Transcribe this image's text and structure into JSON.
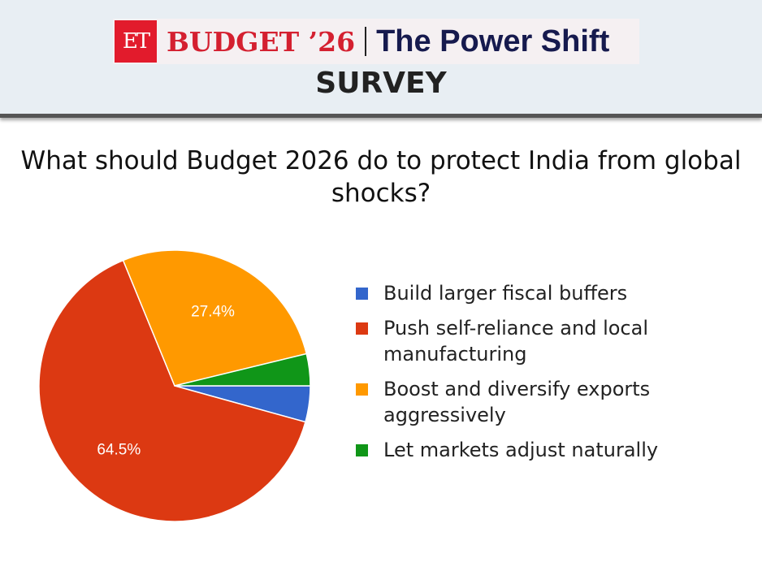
{
  "header": {
    "logo": "ET",
    "brand": "BUDGET ’26",
    "tagline": "The Power Shift",
    "subtitle": "SURVEY"
  },
  "chart_data": {
    "type": "pie",
    "title": "What should Budget 2026 do to protect India from global shocks?",
    "categories": [
      "Build larger fiscal buffers",
      "Push self-reliance and local manufacturing",
      "Boost and diversify exports aggressively",
      "Let markets adjust naturally"
    ],
    "values": [
      4.3,
      64.5,
      27.4,
      3.8
    ],
    "data_labels": [
      "",
      "64.5%",
      "27.4%",
      ""
    ],
    "colors": [
      "#3366cc",
      "#dc3912",
      "#ff9900",
      "#109618"
    ],
    "legend": "right"
  }
}
